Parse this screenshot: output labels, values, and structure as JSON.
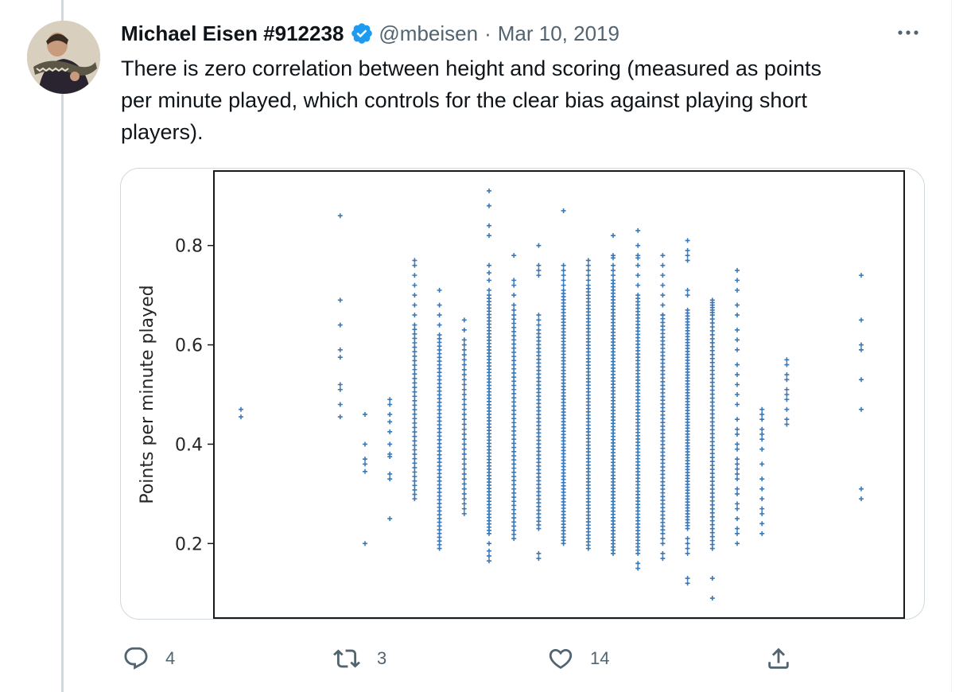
{
  "tweet": {
    "display_name": "Michael Eisen #912238",
    "handle": "@mbeisen",
    "separator": "·",
    "date": "Mar 10, 2019",
    "text": "There is zero correlation between height and scoring (measured as points\nper minute played, which controls for the clear bias against playing short\nplayers).",
    "icons": {
      "avatar": "avatar-photo",
      "verified": "verified-badge-icon",
      "more": "more-options-icon"
    },
    "colors": {
      "verified": "#1d9bf0",
      "text": "#0f1419",
      "muted": "#536471",
      "point": "#3b78b5"
    }
  },
  "actions": {
    "reply": {
      "icon": "reply-icon",
      "count": "4"
    },
    "retweet": {
      "icon": "retweet-icon",
      "count": "3"
    },
    "like": {
      "icon": "heart-icon",
      "count": "14"
    },
    "share": {
      "icon": "share-icon"
    }
  },
  "chart_data": {
    "type": "scatter",
    "title": "",
    "xlabel": "",
    "ylabel": "Points per minute played",
    "ylim": [
      0.05,
      0.95
    ],
    "yticks": [
      "0.2",
      "0.4",
      "0.6",
      "0.8"
    ],
    "xticks": [],
    "grid": false,
    "marker": "+",
    "marker_color": "#3b78b5",
    "columns": [
      {
        "x": 1,
        "points": [
          0.47,
          0.455
        ]
      },
      {
        "x": 5,
        "points": [
          0.86,
          0.69,
          0.64,
          0.59,
          0.575,
          0.52,
          0.51,
          0.48,
          0.455
        ]
      },
      {
        "x": 6,
        "points": [
          0.46,
          0.4,
          0.37,
          0.36,
          0.345,
          0.2
        ]
      },
      {
        "x": 7,
        "points": [
          0.49,
          0.48,
          0.46,
          0.445,
          0.425,
          0.4,
          0.38,
          0.375,
          0.34,
          0.33,
          0.25
        ]
      },
      {
        "x": 8,
        "points": [
          0.77,
          0.76,
          0.74,
          0.72,
          0.7,
          0.68,
          0.66
        ]
      },
      {
        "x": 8,
        "range": [
          0.29,
          0.64
        ],
        "count": 40
      },
      {
        "x": 9,
        "points": [
          0.71,
          0.68,
          0.66,
          0.64
        ]
      },
      {
        "x": 9,
        "range": [
          0.19,
          0.62
        ],
        "count": 58
      },
      {
        "x": 10,
        "points": [
          0.65,
          0.63
        ]
      },
      {
        "x": 10,
        "range": [
          0.26,
          0.61
        ],
        "count": 36
      },
      {
        "x": 11,
        "points": [
          0.91,
          0.88,
          0.84,
          0.82,
          0.76,
          0.745,
          0.73,
          0.71,
          0.2,
          0.185,
          0.175,
          0.165
        ]
      },
      {
        "x": 11,
        "range": [
          0.22,
          0.7
        ],
        "count": 75
      },
      {
        "x": 12,
        "points": [
          0.78,
          0.73,
          0.72,
          0.7,
          0.68,
          0.67
        ]
      },
      {
        "x": 12,
        "range": [
          0.21,
          0.66
        ],
        "count": 55
      },
      {
        "x": 13,
        "points": [
          0.8,
          0.76,
          0.75,
          0.74,
          0.66,
          0.65,
          0.64,
          0.18,
          0.17
        ]
      },
      {
        "x": 13,
        "range": [
          0.23,
          0.63
        ],
        "count": 55
      },
      {
        "x": 14,
        "points": [
          0.87,
          0.76,
          0.75,
          0.74,
          0.73,
          0.72
        ]
      },
      {
        "x": 14,
        "range": [
          0.2,
          0.71
        ],
        "count": 80
      },
      {
        "x": 15,
        "points": [
          0.77,
          0.76,
          0.75,
          0.74,
          0.73
        ]
      },
      {
        "x": 15,
        "range": [
          0.19,
          0.72
        ],
        "count": 80
      },
      {
        "x": 16,
        "points": [
          0.82,
          0.78,
          0.775,
          0.76,
          0.75,
          0.74
        ]
      },
      {
        "x": 16,
        "range": [
          0.18,
          0.73
        ],
        "count": 85
      },
      {
        "x": 17,
        "points": [
          0.83,
          0.8,
          0.78,
          0.775,
          0.76,
          0.74,
          0.72,
          0.16,
          0.15
        ]
      },
      {
        "x": 17,
        "range": [
          0.18,
          0.7
        ],
        "count": 80
      },
      {
        "x": 18,
        "points": [
          0.78,
          0.76,
          0.74,
          0.72,
          0.7,
          0.68,
          0.66,
          0.21,
          0.2,
          0.18,
          0.17
        ]
      },
      {
        "x": 18,
        "range": [
          0.22,
          0.66
        ],
        "count": 60
      },
      {
        "x": 19,
        "points": [
          0.81,
          0.79,
          0.78,
          0.77,
          0.71,
          0.7,
          0.21,
          0.2,
          0.19,
          0.18,
          0.13,
          0.12
        ]
      },
      {
        "x": 19,
        "range": [
          0.23,
          0.67
        ],
        "count": 75
      },
      {
        "x": 20,
        "points": [
          0.69,
          0.685,
          0.68,
          0.675,
          0.67,
          0.665,
          0.13,
          0.09
        ]
      },
      {
        "x": 20,
        "range": [
          0.19,
          0.66
        ],
        "count": 60
      },
      {
        "x": 21,
        "points": [
          0.75,
          0.73,
          0.71,
          0.68,
          0.66,
          0.63,
          0.61,
          0.59,
          0.56,
          0.54,
          0.52,
          0.5,
          0.48,
          0.45,
          0.43,
          0.42,
          0.4,
          0.39,
          0.37,
          0.36,
          0.35,
          0.34,
          0.33,
          0.31,
          0.3,
          0.28,
          0.27,
          0.25,
          0.23,
          0.22,
          0.2
        ]
      },
      {
        "x": 22,
        "points": [
          0.47,
          0.46,
          0.45,
          0.43,
          0.42,
          0.41,
          0.39,
          0.36,
          0.33,
          0.31,
          0.29,
          0.27,
          0.26,
          0.24,
          0.22
        ]
      },
      {
        "x": 23,
        "points": [
          0.57,
          0.56,
          0.54,
          0.53,
          0.51,
          0.5,
          0.49,
          0.47,
          0.45,
          0.44
        ]
      },
      {
        "x": 26,
        "points": [
          0.74,
          0.65,
          0.6,
          0.59,
          0.53,
          0.47,
          0.31,
          0.29
        ]
      }
    ]
  }
}
